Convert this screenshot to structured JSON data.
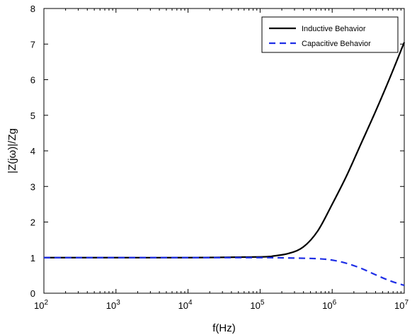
{
  "chart_data": {
    "type": "line",
    "xlabel": "f(Hz)",
    "ylabel": "|Z(jω)|/Zg",
    "xscale": "log",
    "xlim": [
      100,
      10000000
    ],
    "ylim": [
      0,
      8
    ],
    "x_ticks": [
      {
        "value": 100,
        "base": "10",
        "exp": "2"
      },
      {
        "value": 1000,
        "base": "10",
        "exp": "3"
      },
      {
        "value": 10000,
        "base": "10",
        "exp": "4"
      },
      {
        "value": 100000,
        "base": "10",
        "exp": "5"
      },
      {
        "value": 1000000,
        "base": "10",
        "exp": "6"
      },
      {
        "value": 10000000,
        "base": "10",
        "exp": "7"
      }
    ],
    "y_ticks": [
      "0",
      "1",
      "2",
      "3",
      "4",
      "5",
      "6",
      "7",
      "8"
    ],
    "grid": false,
    "legend_position": "top-right",
    "series": [
      {
        "name": "Inductive Behavior",
        "color": "#000000",
        "style": "solid",
        "x": [
          100,
          1000,
          10000,
          100000,
          158489,
          251189,
          398107,
          630957,
          1000000,
          1584893,
          2511886,
          3981072,
          6309573,
          10000000
        ],
        "y": [
          1.0,
          1.0,
          1.0,
          1.02,
          1.05,
          1.12,
          1.3,
          1.75,
          2.5,
          3.3,
          4.2,
          5.1,
          6.05,
          7.05
        ]
      },
      {
        "name": "Capacitive Behavior",
        "color": "#1f2fe6",
        "style": "dashed",
        "x": [
          100,
          1000,
          10000,
          100000,
          251189,
          630957,
          1000000,
          1584893,
          2511886,
          3981072,
          6309573,
          10000000
        ],
        "y": [
          1.0,
          1.0,
          1.0,
          1.0,
          0.99,
          0.97,
          0.93,
          0.84,
          0.7,
          0.52,
          0.35,
          0.22
        ]
      }
    ]
  }
}
